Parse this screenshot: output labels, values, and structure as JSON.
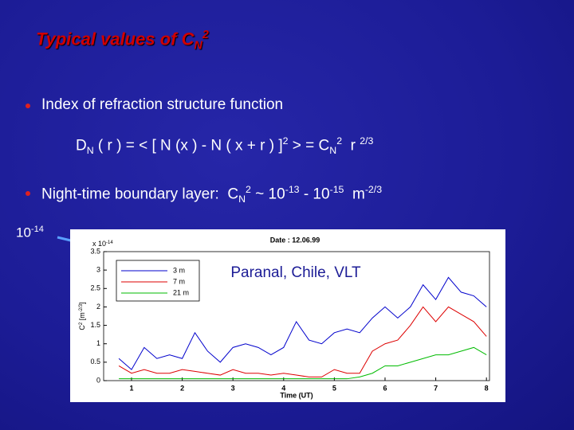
{
  "slide": {
    "title": [
      "Typical values of C",
      {
        "sub": "N"
      },
      {
        "sup": "2"
      }
    ],
    "bullets": [
      [
        "Index of refraction structure function"
      ],
      [
        "Night-time boundary layer:  C",
        {
          "sub": "N"
        },
        {
          "sup": "2"
        },
        " ~ 10",
        {
          "sup": "-13"
        },
        " - 10",
        {
          "sup": "-15"
        },
        "  m",
        {
          "sup": "-2/3"
        }
      ]
    ],
    "formula": [
      "D",
      {
        "sub": "N"
      },
      " ( r ) = < [ N (x ) - N ( x + r ) ]",
      {
        "sup": "2"
      },
      " > = C",
      {
        "sub": "N"
      },
      {
        "sup": "2"
      },
      "  r ",
      {
        "sup": "2/3"
      }
    ],
    "pointer_label": [
      "10",
      {
        "sup": "-14"
      }
    ]
  },
  "chart_data": {
    "type": "line",
    "title": "Date : 12.06.99",
    "annotation": "Paranal, Chile, VLT",
    "x_label": "Time (UT)",
    "y_label": [
      "C",
      {
        "sup": "2"
      },
      " [m",
      {
        "sup": "-2/3"
      },
      "]"
    ],
    "y_multiplier": [
      "x 10",
      {
        "sup": "-14"
      }
    ],
    "x": [
      0.75,
      1.0,
      1.25,
      1.5,
      1.75,
      2.0,
      2.25,
      2.5,
      2.75,
      3.0,
      3.25,
      3.5,
      3.75,
      4.0,
      4.25,
      4.5,
      4.75,
      5.0,
      5.25,
      5.5,
      5.75,
      6.0,
      6.25,
      6.5,
      6.75,
      7.0,
      7.25,
      7.5,
      7.75,
      8.0
    ],
    "series": [
      {
        "name": "3 m",
        "color": "#0000cc",
        "values": [
          0.6,
          0.3,
          0.9,
          0.6,
          0.7,
          0.6,
          1.3,
          0.8,
          0.5,
          0.9,
          1.0,
          0.9,
          0.7,
          0.9,
          1.6,
          1.1,
          1.0,
          1.3,
          1.4,
          1.3,
          1.7,
          2.0,
          1.7,
          2.0,
          2.6,
          2.2,
          2.8,
          2.4,
          2.3,
          2.0
        ]
      },
      {
        "name": "7 m",
        "color": "#dd0000",
        "values": [
          0.4,
          0.2,
          0.3,
          0.2,
          0.2,
          0.3,
          0.25,
          0.2,
          0.15,
          0.3,
          0.2,
          0.2,
          0.15,
          0.2,
          0.15,
          0.1,
          0.1,
          0.3,
          0.2,
          0.2,
          0.8,
          1.0,
          1.1,
          1.5,
          2.0,
          1.6,
          2.0,
          1.8,
          1.6,
          1.2
        ]
      },
      {
        "name": "21 m",
        "color": "#00bb00",
        "values": [
          0.05,
          0.05,
          0.05,
          0.05,
          0.05,
          0.05,
          0.05,
          0.05,
          0.05,
          0.05,
          0.05,
          0.05,
          0.05,
          0.05,
          0.05,
          0.05,
          0.05,
          0.05,
          0.05,
          0.1,
          0.2,
          0.4,
          0.4,
          0.5,
          0.6,
          0.7,
          0.7,
          0.8,
          0.9,
          0.7
        ]
      }
    ],
    "xlim": [
      0.45,
      8.06
    ],
    "ylim": [
      0,
      3.5
    ],
    "xticks": [
      1,
      2,
      3,
      4,
      5,
      6,
      7,
      8
    ],
    "yticks": [
      0,
      0.5,
      1,
      1.5,
      2,
      2.5,
      3,
      3.5
    ]
  }
}
